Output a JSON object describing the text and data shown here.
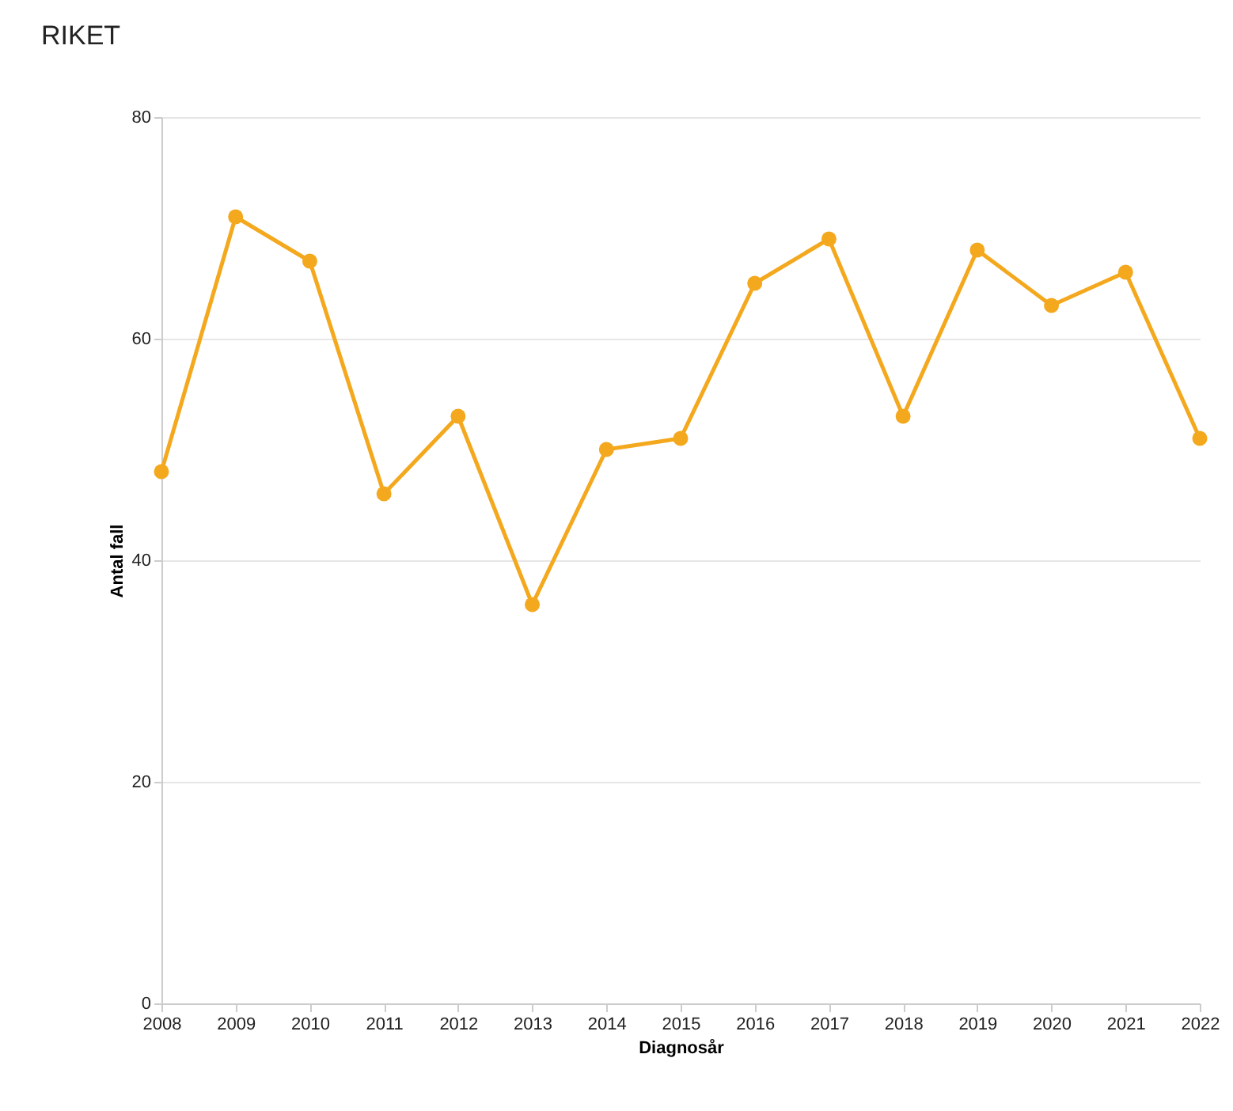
{
  "chart_data": {
    "type": "line",
    "title": "RIKET",
    "xlabel": "Diagnosår",
    "ylabel": "Antal fall",
    "x": [
      2008,
      2009,
      2010,
      2011,
      2012,
      2013,
      2014,
      2015,
      2016,
      2017,
      2018,
      2019,
      2020,
      2021,
      2022
    ],
    "series": [
      {
        "color": "#f4a81d",
        "values": [
          48,
          71,
          67,
          46,
          53,
          36,
          50,
          51,
          65,
          69,
          53,
          68,
          63,
          66,
          51
        ]
      }
    ],
    "xlim": [
      2008,
      2022
    ],
    "xticks": [
      2008,
      2009,
      2010,
      2011,
      2012,
      2013,
      2014,
      2015,
      2016,
      2017,
      2018,
      2019,
      2020,
      2021,
      2022
    ],
    "ylim": [
      0,
      80
    ],
    "yticks": [
      0,
      20,
      40,
      60,
      80
    ],
    "grid": "y",
    "marker": "circle",
    "line_style": "solid"
  }
}
